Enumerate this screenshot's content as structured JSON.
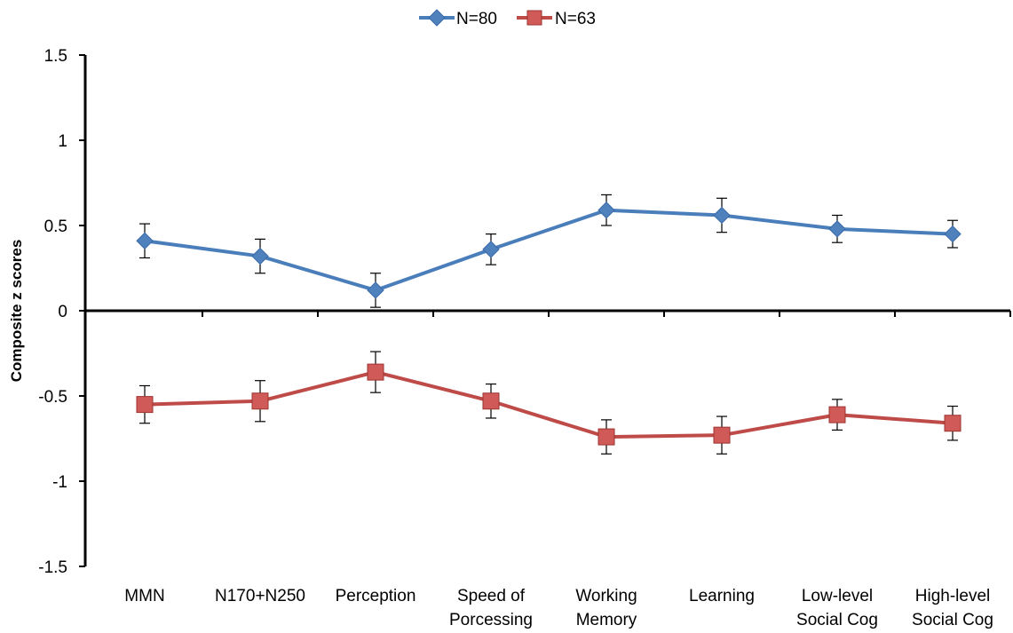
{
  "chart_data": {
    "type": "line",
    "title": "",
    "xlabel": "",
    "ylabel": "Composite z scores",
    "ylim": [
      -1.5,
      1.5
    ],
    "yticks": [
      "1.5",
      "1",
      "0.5",
      "0",
      "-0.5",
      "-1",
      "-1.5"
    ],
    "ytick_values": [
      1.5,
      1,
      0.5,
      0,
      -0.5,
      -1,
      -1.5
    ],
    "grid": false,
    "legend_position": "top-center",
    "categories": [
      [
        "MMN"
      ],
      [
        "N170+N250"
      ],
      [
        "Perception"
      ],
      [
        "Speed of",
        "Porcessing"
      ],
      [
        "Working",
        "Memory"
      ],
      [
        "Learning"
      ],
      [
        "Low-level",
        "Social Cog"
      ],
      [
        "High-level",
        "Social Cog"
      ]
    ],
    "series": [
      {
        "name": "N=80",
        "color": "#4a7ebb",
        "marker": "diamond",
        "values": [
          0.41,
          0.32,
          0.12,
          0.36,
          0.59,
          0.56,
          0.48,
          0.45
        ],
        "error": [
          0.1,
          0.1,
          0.1,
          0.09,
          0.09,
          0.1,
          0.08,
          0.08
        ]
      },
      {
        "name": "N=63",
        "color": "#be4b48",
        "marker": "square",
        "values": [
          -0.55,
          -0.53,
          -0.36,
          -0.53,
          -0.74,
          -0.73,
          -0.61,
          -0.66
        ],
        "error": [
          0.11,
          0.12,
          0.12,
          0.1,
          0.1,
          0.11,
          0.09,
          0.1
        ]
      }
    ]
  }
}
